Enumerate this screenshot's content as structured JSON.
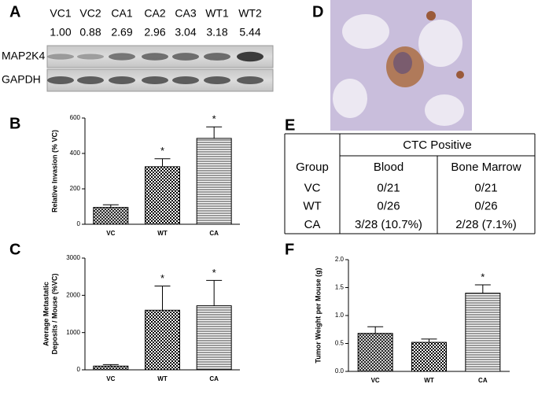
{
  "panel_labels": [
    "A",
    "B",
    "C",
    "D",
    "E",
    "F"
  ],
  "blot": {
    "lanes": [
      "VC1",
      "VC2",
      "CA1",
      "CA2",
      "CA3",
      "WT1",
      "WT2"
    ],
    "ratios": [
      "1.00",
      "0.88",
      "2.69",
      "2.96",
      "3.04",
      "3.18",
      "5.44"
    ],
    "rows": [
      "MAP2K4",
      "GAPDH"
    ]
  },
  "table": {
    "header": [
      "Group",
      "Blood",
      "Bone Marrow"
    ],
    "group_header": "CTC Positive",
    "rows": [
      [
        "VC",
        "0/21",
        "0/21"
      ],
      [
        "WT",
        "0/26",
        "0/26"
      ],
      [
        "CA",
        "3/28 (10.7%)",
        "2/28 (7.1%)"
      ]
    ]
  },
  "chart_data": [
    {
      "type": "bar",
      "ylabel": [
        "Relative  Invasion (% VC)"
      ],
      "categories": [
        "VC",
        "WT",
        "CA"
      ],
      "values": [
        95,
        325,
        485
      ],
      "errors": [
        15,
        45,
        65
      ],
      "annotations": [
        null,
        "*",
        "*"
      ],
      "fills": [
        "crosshatch",
        "checker",
        "horizontal-lines"
      ],
      "ylim": [
        0,
        600
      ],
      "yticks": [
        0,
        200,
        400,
        600
      ]
    },
    {
      "type": "bar",
      "ylabel": [
        "Average  Metastatic",
        "Deposits / Mouse (%VC)"
      ],
      "categories": [
        "VC",
        "WT",
        "CA"
      ],
      "values": [
        100,
        1600,
        1720
      ],
      "errors": [
        40,
        650,
        680
      ],
      "annotations": [
        null,
        "*",
        "*"
      ],
      "fills": [
        "crosshatch",
        "checker",
        "horizontal-lines"
      ],
      "ylim": [
        0,
        3000
      ],
      "yticks": [
        0,
        1000,
        2000,
        3000
      ]
    },
    {
      "type": "bar",
      "ylabel": [
        "Tumor Weight per Mouse  (g)"
      ],
      "categories": [
        "VC",
        "WT",
        "CA"
      ],
      "values": [
        0.68,
        0.52,
        1.4
      ],
      "errors": [
        0.12,
        0.06,
        0.15
      ],
      "annotations": [
        null,
        null,
        "*"
      ],
      "fills": [
        "crosshatch",
        "checker",
        "horizontal-lines"
      ],
      "ylim": [
        0,
        2.0
      ],
      "yticks": [
        {
          "value": 0,
          "label": "0.0"
        },
        {
          "value": 0.5,
          "label": "0.5"
        },
        {
          "value": 1,
          "label": "1.0"
        },
        {
          "value": 1.5,
          "label": "1.5"
        },
        {
          "value": 2,
          "label": "2.0"
        }
      ]
    }
  ]
}
